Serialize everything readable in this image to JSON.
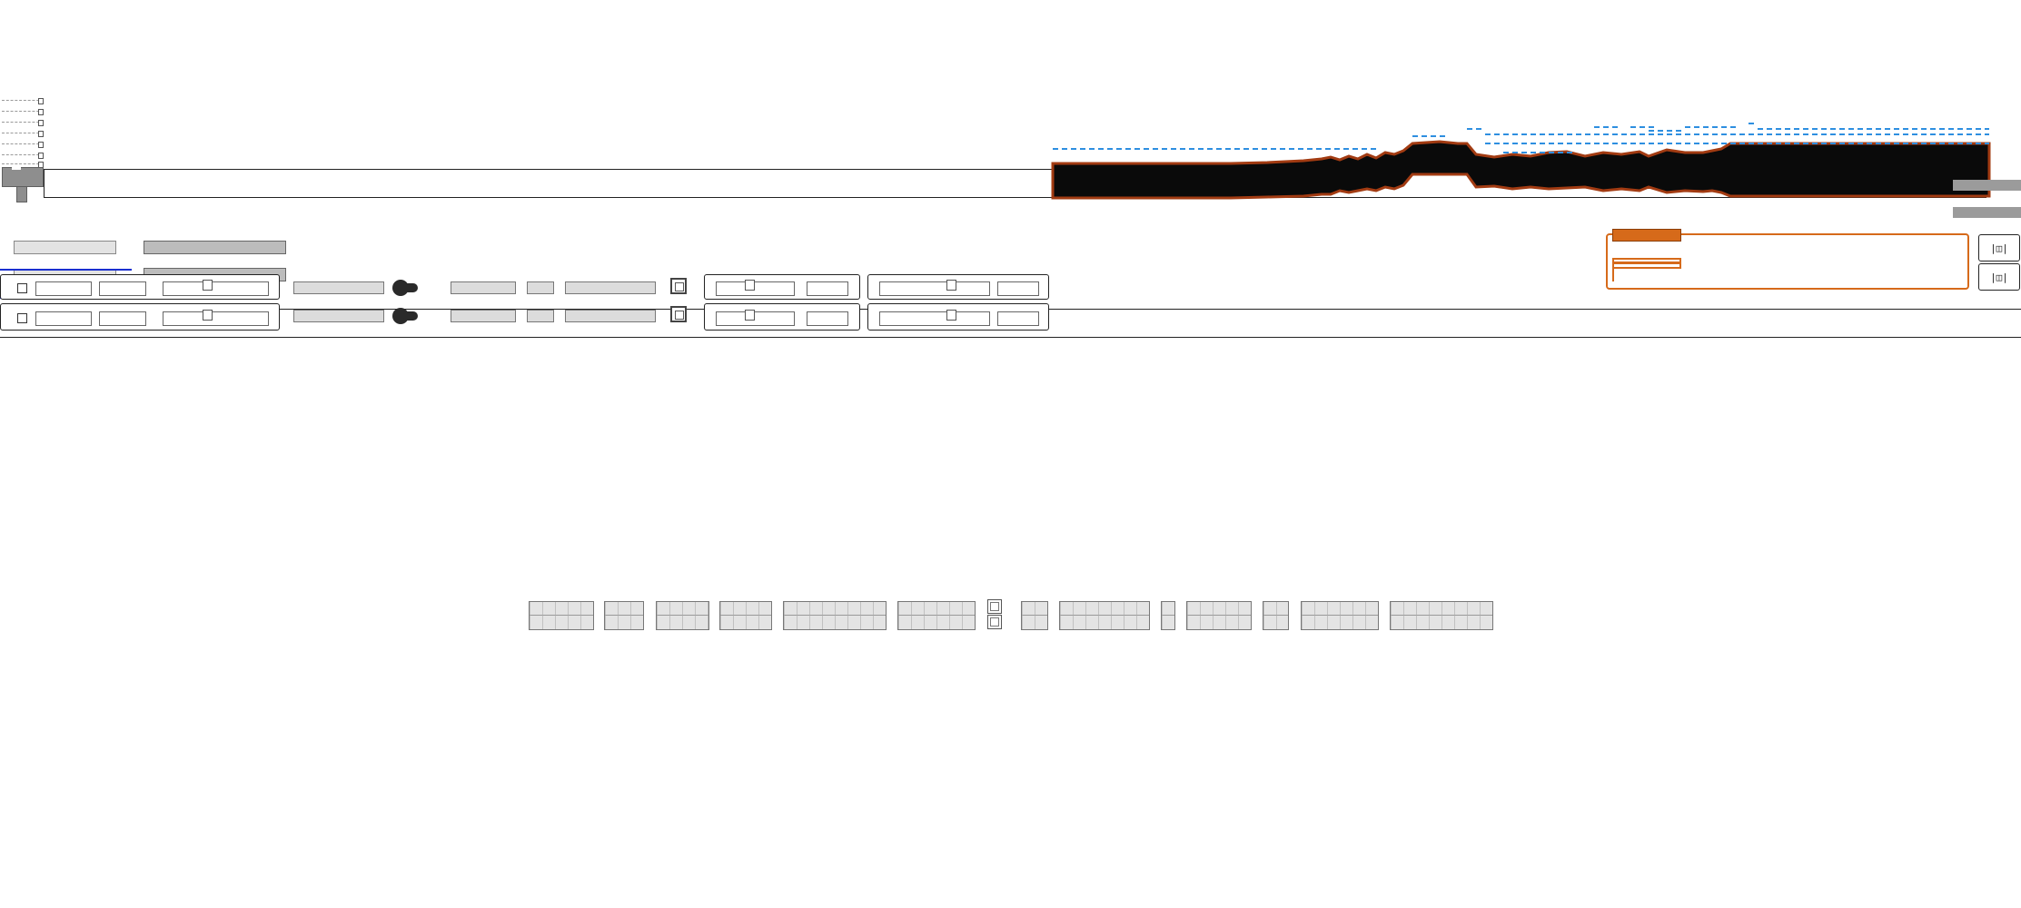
{
  "corner_buttons": [
    {
      "label": "|◫|"
    },
    {
      "label": "|◫|"
    }
  ],
  "icons": {
    "knob": "dark-knob-icon",
    "square_button": "square-button-icon",
    "toolbar_stack": "stacked-square-icon"
  },
  "colors": {
    "waveform_fill": "#0a0a0a",
    "waveform_edge": "#a23b12",
    "guide_dash": "#2e8fe0",
    "accent_orange": "#d66a1a",
    "selection_blue": "#1a2fd0"
  }
}
